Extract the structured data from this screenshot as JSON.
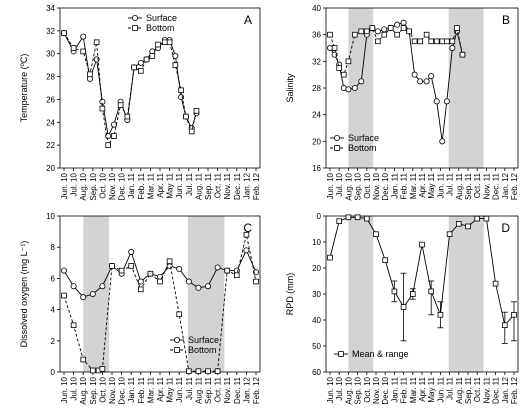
{
  "months": [
    "Jun. 10",
    "Jul. 10",
    "Aug. 10",
    "Sep. 10",
    "Oct. 10",
    "Nov. 10",
    "Dec. 10",
    "Jan. 11",
    "Feb. 11",
    "Mar. 11",
    "Apr. 11",
    "May 11",
    "Jun. 11",
    "Jul. 11",
    "Aug. 11",
    "Sep. 11",
    "Oct. 11",
    "Nov. 11",
    "Dec. 11",
    "Jan. 12",
    "Feb. 12"
  ],
  "chart_data": [
    {
      "panel": "A",
      "type": "line",
      "ylabel": "Temperature (ºC)",
      "ylim": [
        20,
        34
      ],
      "yticks": [
        20,
        22,
        24,
        26,
        28,
        30,
        32,
        34
      ],
      "yreversed": false,
      "shaded": [],
      "x": [
        0,
        1,
        2,
        2.7,
        3.4,
        4,
        4.6,
        5.2,
        5.9,
        6.6,
        7.3,
        8,
        8.6,
        9.2,
        9.8,
        10.5,
        11,
        11.6,
        12.2,
        12.7,
        13.3,
        13.8,
        14.4,
        15,
        15.6,
        16.2,
        16.8,
        17.4,
        18,
        18.6,
        19.2,
        19.8,
        20.4
      ],
      "legend": "top-right",
      "series": [
        {
          "name": "Surface",
          "marker": "circle",
          "dash": false,
          "values": [
            31.8,
            30.2,
            31.5,
            27.8,
            29.5,
            25.8,
            22.8,
            23.8,
            25.8,
            24.2,
            28.8,
            29.2,
            29.5,
            30.2,
            30.5,
            31.2,
            31.2,
            29.8,
            26.2,
            24.5,
            23.5,
            24.8,
            null,
            null,
            null,
            null,
            null,
            null,
            null,
            null,
            null,
            null,
            null
          ]
        },
        {
          "name": "Bottom",
          "marker": "square",
          "dash": true,
          "values": [
            31.8,
            30.5,
            30.2,
            28.2,
            31.0,
            25.2,
            22.0,
            22.8,
            25.5,
            24.5,
            28.8,
            28.5,
            29.5,
            29.8,
            30.8,
            31.0,
            31.0,
            29.0,
            26.8,
            24.5,
            23.2,
            25.0,
            null,
            null,
            null,
            null,
            null,
            null,
            null,
            null,
            null,
            null,
            null
          ]
        }
      ]
    },
    {
      "panel": "B",
      "type": "line",
      "ylabel": "Salinity",
      "ylim": [
        16,
        40
      ],
      "yticks": [
        16,
        20,
        24,
        28,
        32,
        36,
        40
      ],
      "yreversed": false,
      "shaded": [
        [
          2,
          4.7
        ],
        [
          12.9,
          16.7
        ]
      ],
      "x": [
        0,
        0.5,
        1,
        1.5,
        2,
        2.7,
        3.4,
        4,
        4.6,
        5.2,
        5.9,
        6.6,
        7.3,
        8,
        8.6,
        9.2,
        9.8,
        10.5,
        11,
        11.6,
        12.2,
        12.7,
        13.3,
        13.8,
        14.4,
        15,
        15.6,
        16.2,
        16.8,
        17.4,
        18,
        18.6,
        19.2,
        19.8,
        20.4
      ],
      "legend": "bottom-left",
      "series": [
        {
          "name": "Surface",
          "marker": "circle",
          "dash": false,
          "values": [
            34.0,
            33.0,
            31.5,
            28.0,
            27.8,
            28.0,
            29.0,
            36.0,
            37.0,
            36.5,
            36.8,
            37.0,
            37.5,
            37.8,
            36.5,
            30.0,
            29.0,
            29.0,
            29.8,
            26.0,
            20.0,
            26.0,
            34.0,
            36.5,
            33.0,
            null,
            null,
            null,
            null,
            null,
            null,
            null,
            null,
            null,
            null
          ]
        },
        {
          "name": "Bottom",
          "marker": "square",
          "dash": true,
          "values": [
            36.0,
            34.0,
            31.0,
            30.0,
            32.0,
            36.0,
            36.5,
            36.5,
            37.0,
            35.0,
            36.0,
            37.0,
            36.0,
            37.0,
            36.5,
            35.0,
            35.0,
            36.0,
            35.0,
            35.0,
            35.0,
            35.0,
            35.0,
            37.0,
            33.0,
            null,
            null,
            null,
            null,
            null,
            null,
            null,
            null,
            null,
            null
          ]
        }
      ]
    },
    {
      "panel": "C",
      "type": "line",
      "ylabel": "Dissolved oxygen (mg L⁻¹)",
      "ylim": [
        0,
        10
      ],
      "yticks": [
        0,
        2,
        4,
        6,
        8,
        10
      ],
      "yreversed": false,
      "shaded": [
        [
          2,
          4.7
        ],
        [
          12.9,
          16.7
        ]
      ],
      "legend": "bottom-right",
      "series": [
        {
          "name": "Surface",
          "marker": "circle",
          "dash": false,
          "x": [
            0,
            1,
            2,
            3,
            4,
            5,
            6,
            7,
            8,
            9,
            10,
            11,
            12,
            13,
            14,
            15,
            16,
            17,
            18,
            19,
            20
          ],
          "values": [
            6.5,
            5.5,
            4.8,
            5.0,
            5.5,
            6.8,
            6.3,
            7.7,
            5.8,
            6.3,
            6.1,
            6.8,
            6.6,
            5.8,
            5.4,
            5.5,
            6.7,
            6.5,
            6.5,
            7.8,
            6.4
          ]
        },
        {
          "name": "Bottom",
          "marker": "square",
          "dash": true,
          "x": [
            0,
            1,
            2,
            3,
            3.6,
            4,
            5,
            6,
            7,
            8,
            9,
            10,
            11,
            12,
            13,
            14,
            15,
            16,
            17,
            18,
            19,
            20
          ],
          "values": [
            4.9,
            3.0,
            0.8,
            0.1,
            0.1,
            0.2,
            6.8,
            6.5,
            6.8,
            5.3,
            6.3,
            5.8,
            7.1,
            3.7,
            0.05,
            0.05,
            0.05,
            0.05,
            6.5,
            6.2,
            8.8,
            5.8
          ]
        }
      ]
    },
    {
      "panel": "D",
      "type": "line",
      "ylabel": "RPD (mm)",
      "ylim": [
        0,
        60
      ],
      "yticks": [
        0,
        10,
        20,
        30,
        40,
        50,
        60
      ],
      "yreversed": true,
      "shaded": [
        [
          2,
          4.7
        ],
        [
          12.9,
          16.7
        ]
      ],
      "legend": "bottom-left",
      "series": [
        {
          "name": "Mean & range",
          "marker": "square",
          "dash": false,
          "x": [
            0,
            1,
            2,
            3,
            4,
            5,
            6,
            7,
            8,
            9,
            10,
            11,
            12,
            13,
            14,
            15,
            16,
            17,
            18,
            19,
            20
          ],
          "values": [
            16,
            2,
            0.5,
            0.5,
            1,
            7,
            17,
            29,
            35,
            30,
            11,
            29,
            38,
            7,
            3,
            4,
            1,
            1,
            26,
            42,
            38
          ],
          "err_low": [
            null,
            null,
            null,
            null,
            null,
            null,
            null,
            25,
            22,
            28,
            null,
            25,
            33,
            null,
            null,
            null,
            null,
            null,
            null,
            37,
            33
          ],
          "err_high": [
            null,
            null,
            null,
            null,
            null,
            null,
            null,
            33,
            48,
            32,
            null,
            38,
            43,
            null,
            null,
            null,
            null,
            null,
            null,
            49,
            48
          ]
        }
      ]
    }
  ]
}
